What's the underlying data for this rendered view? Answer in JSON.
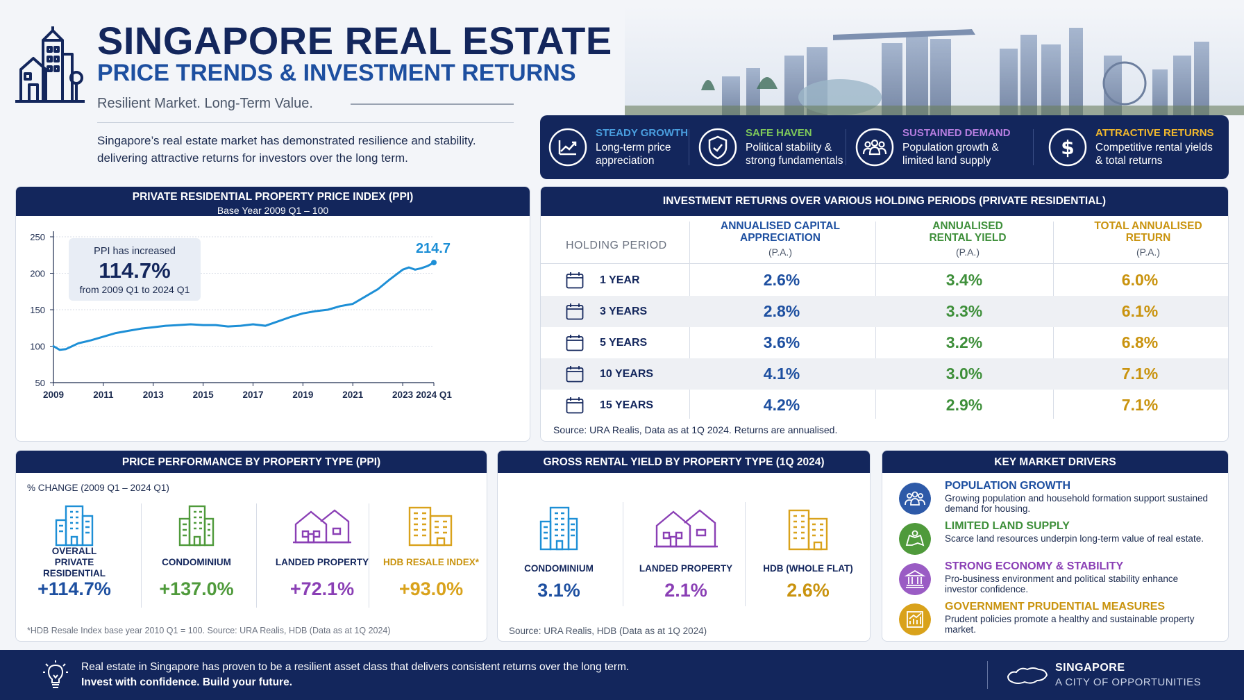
{
  "header": {
    "title": "SINGAPORE REAL ESTATE",
    "subtitle": "PRICE TRENDS & INVESTMENT RETURNS",
    "tagline": "Resilient Market. Long-Term Value.",
    "intro": "Singapore’s real estate market has demonstrated resilience and stability. delivering attractive returns for investors over the long term."
  },
  "features": [
    {
      "title": "STEADY GROWTH",
      "line1": "Long-term price",
      "line2": "appreciation",
      "color": "#4a9fe0",
      "icon": "trend-up-icon"
    },
    {
      "title": "SAFE HAVEN",
      "line1": "Political stability &",
      "line2": "strong fundamentals",
      "color": "#7ec85a",
      "icon": "shield-icon"
    },
    {
      "title": "SUSTAINED DEMAND",
      "line1": "Population growth &",
      "line2": "limited land supply",
      "color": "#b67ee0",
      "icon": "people-icon"
    },
    {
      "title": "ATTRACTIVE RETURNS",
      "line1": "Competitive rental yields",
      "line2": "& total returns",
      "color": "#f1b82d",
      "icon": "dollar-icon"
    }
  ],
  "ppi": {
    "title": "PRIVATE RESIDENTIAL PROPERTY PRICE INDEX (PPI)",
    "subtitle": "Base Year 2009 Q1 – 100",
    "callout_line1": "PPI has increased",
    "callout_value": "114.7%",
    "callout_line3": "from 2009 Q1 to 2024 Q1",
    "end_label": "214.7",
    "line_color": "#1d8fd6"
  },
  "chart_data": {
    "type": "line",
    "title": "PRIVATE RESIDENTIAL PROPERTY PRICE INDEX (PPI)",
    "subtitle": "Base Year 2009 Q1 – 100",
    "xlabel": "",
    "ylabel": "",
    "ylim": [
      50,
      250
    ],
    "xlim": [
      2009,
      2024.25
    ],
    "y_ticks": [
      "50",
      "100",
      "150",
      "200",
      "250"
    ],
    "x_ticks": [
      {
        "label": "2009",
        "x": 2009
      },
      {
        "label": "2011",
        "x": 2011
      },
      {
        "label": "2013",
        "x": 2013
      },
      {
        "label": "2015",
        "x": 2015
      },
      {
        "label": "2017",
        "x": 2017
      },
      {
        "label": "2019",
        "x": 2019
      },
      {
        "label": "2021",
        "x": 2021
      },
      {
        "label": "2023",
        "x": 2023
      },
      {
        "label": "2024 Q1",
        "x": 2024.25
      }
    ],
    "grid": true,
    "series": [
      {
        "x": [
          2009,
          2009.25,
          2009.5,
          2009.75,
          2010,
          2010.5,
          2011,
          2011.5,
          2012,
          2012.5,
          2013,
          2013.5,
          2014,
          2014.5,
          2015,
          2015.5,
          2016,
          2016.5,
          2017,
          2017.5,
          2018,
          2018.5,
          2019,
          2019.5,
          2020,
          2020.5,
          2021,
          2021.5,
          2022,
          2022.5,
          2023,
          2023.25,
          2023.5,
          2023.75,
          2024,
          2024.25
        ],
        "y": [
          100,
          95,
          96,
          100,
          104,
          108,
          113,
          118,
          121,
          124,
          126,
          128,
          129,
          130,
          129,
          129,
          127,
          128,
          130,
          128,
          134,
          140,
          145,
          148,
          150,
          155,
          158,
          168,
          178,
          192,
          205,
          208,
          205,
          207,
          210,
          214.7
        ]
      }
    ]
  },
  "returns": {
    "title": "INVESTMENT RETURNS OVER VARIOUS HOLDING PERIODS (PRIVATE RESIDENTIAL)",
    "holding_header": "HOLDING PERIOD",
    "pa": "(P.A.)",
    "columns": [
      {
        "line1": "ANNUALISED CAPITAL",
        "line2": "APPRECIATION",
        "color": "#1d4fa0"
      },
      {
        "line1": "ANNUALISED",
        "line2": "RENTAL YIELD",
        "color": "#3e8f3a"
      },
      {
        "line1": "TOTAL ANNUALISED",
        "line2": "RETURN",
        "color": "#c9930e"
      }
    ],
    "rows": [
      {
        "period": "1 YEAR",
        "capital": "2.6%",
        "rental": "3.4%",
        "total": "6.0%"
      },
      {
        "period": "3 YEARS",
        "capital": "2.8%",
        "rental": "3.3%",
        "total": "6.1%"
      },
      {
        "period": "5 YEARS",
        "capital": "3.6%",
        "rental": "3.2%",
        "total": "6.8%"
      },
      {
        "period": "10 YEARS",
        "capital": "4.1%",
        "rental": "3.0%",
        "total": "7.1%"
      },
      {
        "period": "15 YEARS",
        "capital": "4.2%",
        "rental": "2.9%",
        "total": "7.1%"
      }
    ],
    "source": "Source: URA Realis, Data as at 1Q 2024. Returns are annualised."
  },
  "performance": {
    "title": "PRICE PERFORMANCE BY PROPERTY TYPE (PPI)",
    "subtitle": "% CHANGE (2009 Q1 – 2024 Q1)",
    "items": [
      {
        "label1": "OVERALL",
        "label2": "PRIVATE RESIDENTIAL",
        "value": "+114.7%",
        "color": "#1d8fd6",
        "icon": "apartment-icon"
      },
      {
        "label1": "CONDOMINIUM",
        "label2": "",
        "value": "+137.0%",
        "color": "#4f9a3b",
        "icon": "condo-icon"
      },
      {
        "label1": "LANDED PROPERTY",
        "label2": "",
        "value": "+72.1%",
        "color": "#8a3fb5",
        "icon": "house-icon"
      },
      {
        "label1": "HDB RESALE INDEX*",
        "label2": "",
        "value": "+93.0%",
        "color": "#d9a21b",
        "icon": "hdb-icon"
      }
    ],
    "note": "*HDB Resale Index base year 2010 Q1 = 100. Source: URA Realis, HDB (Data as at 1Q 2024)"
  },
  "rental": {
    "title": "GROSS RENTAL YIELD BY PROPERTY TYPE (1Q 2024)",
    "items": [
      {
        "label": "CONDOMINIUM",
        "value": "3.1%",
        "color": "#1d4fa0",
        "icon_color": "#1d8fd6",
        "icon": "condo-icon"
      },
      {
        "label": "LANDED PROPERTY",
        "value": "2.1%",
        "color": "#8a3fb5",
        "icon_color": "#8a3fb5",
        "icon": "house-icon"
      },
      {
        "label": "HDB (WHOLE FLAT)",
        "value": "2.6%",
        "color": "#c9930e",
        "icon_color": "#d9a21b",
        "icon": "hdb-icon"
      }
    ],
    "note": "Source: URA Realis, HDB (Data as at 1Q 2024)"
  },
  "drivers": {
    "title": "KEY MARKET DRIVERS",
    "items": [
      {
        "title": "POPULATION GROWTH",
        "desc": "Growing population and household formation support sustained demand for housing.",
        "color": "#1d4fa0",
        "bg": "#2e5aa8",
        "icon": "people-icon"
      },
      {
        "title": "LIMITED LAND SUPPLY",
        "desc": "Scarce land resources underpin long-term value of real estate.",
        "color": "#3e8f3a",
        "bg": "#4f9a3b",
        "icon": "map-icon"
      },
      {
        "title": "STRONG ECONOMY & STABILITY",
        "desc": "Pro-business environment and political stability enhance investor confidence.",
        "color": "#8a3fb5",
        "bg": "#9a5cc4",
        "icon": "bank-icon"
      },
      {
        "title": "GOVERNMENT PRUDENTIAL MEASURES",
        "desc": "Prudent policies promote a healthy and sustainable property market.",
        "color": "#c9930e",
        "bg": "#d9a21b",
        "icon": "chart-icon"
      }
    ]
  },
  "footer": {
    "line1": "Real estate in Singapore has proven to be a resilient asset class that delivers consistent returns over the long term.",
    "line2": "Invest with confidence. Build your future.",
    "brand1": "SINGAPORE",
    "brand2": "A CITY OF OPPORTUNITIES"
  }
}
